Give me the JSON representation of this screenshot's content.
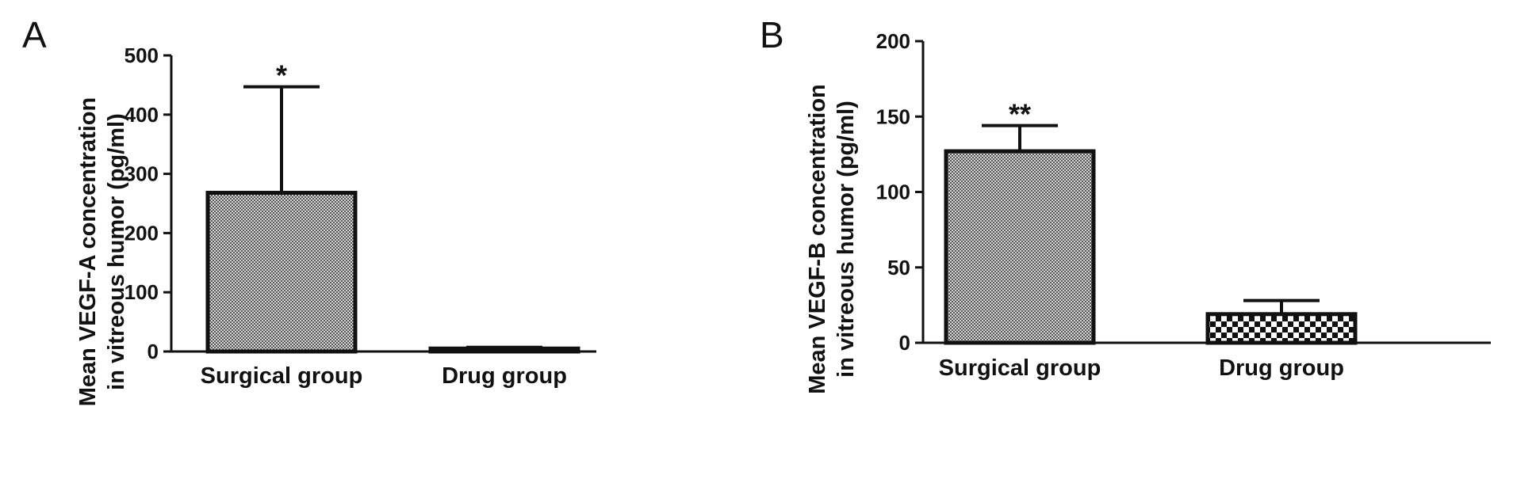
{
  "chart_data": [
    {
      "type": "bar",
      "panel": "A",
      "categories": [
        "Surgical group",
        "Drug group"
      ],
      "values": [
        268,
        5
      ],
      "error": [
        179,
        2
      ],
      "significance": [
        "*",
        ""
      ],
      "ylabel_line1": "Mean VEGF-A concentration",
      "ylabel_line2": "in vitreous humor (pg/ml)",
      "ylim": [
        0,
        500
      ],
      "yticks": [
        0,
        100,
        200,
        300,
        400,
        500
      ],
      "fill_patterns": [
        "fine-checker",
        "fine-checker"
      ]
    },
    {
      "type": "bar",
      "panel": "B",
      "categories": [
        "Surgical group",
        "Drug group"
      ],
      "values": [
        127,
        19
      ],
      "error": [
        17,
        9
      ],
      "significance": [
        "**",
        ""
      ],
      "ylabel_line1": "Mean VEGF-B concentration",
      "ylabel_line2": "in vitreous humor (pg/ml)",
      "ylim": [
        0,
        200
      ],
      "yticks": [
        0,
        50,
        100,
        150,
        200
      ],
      "fill_patterns": [
        "fine-checker",
        "coarse-checker"
      ]
    }
  ],
  "colors": {
    "ink": "#111111",
    "fine_fill_light": "#d9d9d9",
    "fine_fill_dark": "#555555",
    "coarse_fill_light": "#ffffff",
    "coarse_fill_dark": "#111111"
  }
}
